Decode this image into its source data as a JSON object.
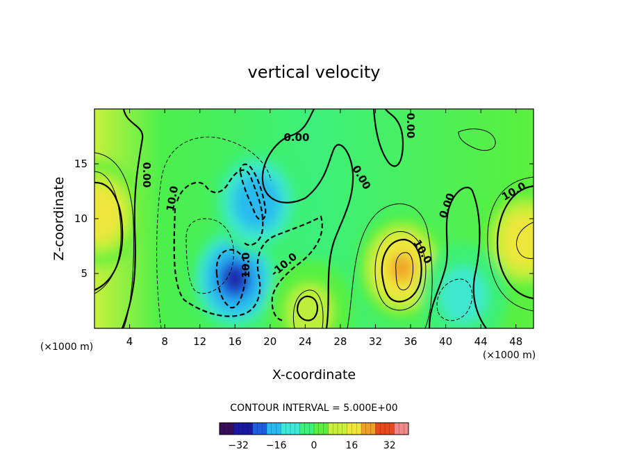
{
  "chart_data": {
    "type": "heatmap",
    "title": "vertical velocity",
    "xlabel": "X-coordinate",
    "ylabel": "Z-coordinate",
    "x_unit": "(×1000 m)",
    "z_unit": "(×1000 m)",
    "xlim": [
      0,
      50
    ],
    "ylim": [
      0,
      20
    ],
    "x_ticks": [
      "4",
      "8",
      "12",
      "16",
      "20",
      "24",
      "28",
      "32",
      "36",
      "40",
      "44",
      "48"
    ],
    "y_ticks": [
      "5",
      "10",
      "15"
    ],
    "contour_interval_text": "CONTOUR INTERVAL = 5.000E+00",
    "contour_labels": [
      "0.00",
      "0.00",
      "0.00",
      "0.00",
      "0.00",
      "10.0",
      "10.0",
      "-10.0",
      "10.0",
      "10.0"
    ],
    "colorbar": {
      "range": [
        -40,
        40
      ],
      "tick_labels": [
        "−32",
        "−16",
        "0",
        "16",
        "32"
      ],
      "tick_values": [
        -32,
        -16,
        0,
        16,
        32
      ]
    },
    "colormap": [
      "#1a0d3a",
      "#1a1aa0",
      "#1e5fe0",
      "#2ab8f0",
      "#3ee8d8",
      "#3cf07a",
      "#5af03c",
      "#c8f03c",
      "#f0e63c",
      "#f0a028",
      "#e84a1e",
      "#d21e1e"
    ],
    "features": [
      {
        "label": "updraft",
        "x": 0.5,
        "z": 10.5,
        "w": 20
      },
      {
        "label": "downdraft",
        "x": 16,
        "z": 4.5,
        "w": -30
      },
      {
        "label": "downdraft",
        "x": 18.5,
        "z": 11.5,
        "w": -22
      },
      {
        "label": "updraft",
        "x": 24.5,
        "z": 1.5,
        "w": 12
      },
      {
        "label": "updraft",
        "x": 35,
        "z": 5.5,
        "w": 24
      },
      {
        "label": "updraft",
        "x": 49,
        "z": 8,
        "w": 20
      },
      {
        "label": "downdraft",
        "x": 42,
        "z": 3,
        "w": -6
      }
    ]
  }
}
